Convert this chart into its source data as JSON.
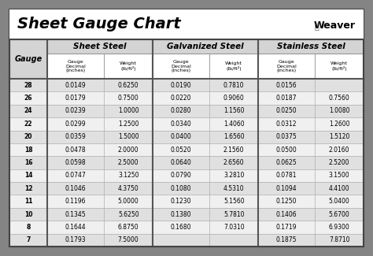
{
  "title": "Sheet Gauge Chart",
  "bg_outer": "#848484",
  "bg_inner": "#ffffff",
  "header_bg": "#d4d4d4",
  "row_alt_bg": "#e0e0e0",
  "row_plain_bg": "#f0f0f0",
  "col_groups": [
    "Sheet Steel",
    "Galvanized Steel",
    "Stainless Steel"
  ],
  "gauges": [
    28,
    26,
    24,
    22,
    20,
    18,
    16,
    14,
    12,
    11,
    10,
    8,
    7
  ],
  "sheet_steel": [
    [
      "0.0149",
      "0.6250"
    ],
    [
      "0.0179",
      "0.7500"
    ],
    [
      "0.0239",
      "1.0000"
    ],
    [
      "0.0299",
      "1.2500"
    ],
    [
      "0.0359",
      "1.5000"
    ],
    [
      "0.0478",
      "2.0000"
    ],
    [
      "0.0598",
      "2.5000"
    ],
    [
      "0.0747",
      "3.1250"
    ],
    [
      "0.1046",
      "4.3750"
    ],
    [
      "0.1196",
      "5.0000"
    ],
    [
      "0.1345",
      "5.6250"
    ],
    [
      "0.1644",
      "6.8750"
    ],
    [
      "0.1793",
      "7.5000"
    ]
  ],
  "galvanized_steel": [
    [
      "0.0190",
      "0.7810"
    ],
    [
      "0.0220",
      "0.9060"
    ],
    [
      "0.0280",
      "1.1560"
    ],
    [
      "0.0340",
      "1.4060"
    ],
    [
      "0.0400",
      "1.6560"
    ],
    [
      "0.0520",
      "2.1560"
    ],
    [
      "0.0640",
      "2.6560"
    ],
    [
      "0.0790",
      "3.2810"
    ],
    [
      "0.1080",
      "4.5310"
    ],
    [
      "0.1230",
      "5.1560"
    ],
    [
      "0.1380",
      "5.7810"
    ],
    [
      "0.1680",
      "7.0310"
    ],
    [
      "",
      ""
    ]
  ],
  "stainless_steel": [
    [
      "0.0156",
      ""
    ],
    [
      "0.0187",
      "0.7560"
    ],
    [
      "0.0250",
      "1.0080"
    ],
    [
      "0.0312",
      "1.2600"
    ],
    [
      "0.0375",
      "1.5120"
    ],
    [
      "0.0500",
      "2.0160"
    ],
    [
      "0.0625",
      "2.5200"
    ],
    [
      "0.0781",
      "3.1500"
    ],
    [
      "0.1094",
      "4.4100"
    ],
    [
      "0.1250",
      "5.0400"
    ],
    [
      "0.1406",
      "5.6700"
    ],
    [
      "0.1719",
      "6.9300"
    ],
    [
      "0.1875",
      "7.8710"
    ]
  ],
  "fig_width": 4.74,
  "fig_height": 3.25,
  "dpi": 100
}
